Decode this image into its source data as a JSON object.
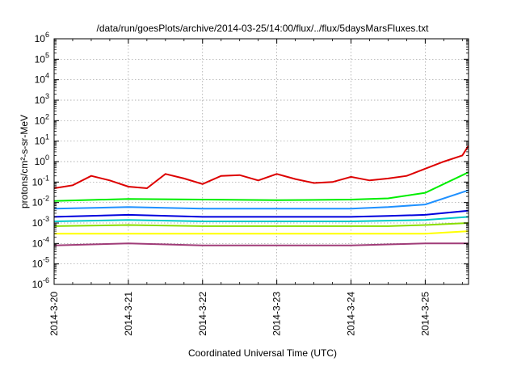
{
  "chart_data": {
    "type": "line",
    "title": "/data/run/goesPlots/archive/2014-03-25/14:00/flux/../flux/5daysMarsFluxes.txt",
    "xlabel": "Coordinated Universal Time (UTC)",
    "ylabel": "protons/cm²-s-sr-MeV",
    "yscale": "log",
    "ylim": [
      "1e-6",
      "1e6"
    ],
    "y_tick_labels": [
      {
        "base": "10",
        "exp": "-6"
      },
      {
        "base": "10",
        "exp": "-5"
      },
      {
        "base": "10",
        "exp": "-4"
      },
      {
        "base": "10",
        "exp": "-3"
      },
      {
        "base": "10",
        "exp": "-2"
      },
      {
        "base": "10",
        "exp": "-1"
      },
      {
        "base": "10",
        "exp": "0"
      },
      {
        "base": "10",
        "exp": "1"
      },
      {
        "base": "10",
        "exp": "2"
      },
      {
        "base": "10",
        "exp": "3"
      },
      {
        "base": "10",
        "exp": "4"
      },
      {
        "base": "10",
        "exp": "5"
      },
      {
        "base": "10",
        "exp": "6"
      }
    ],
    "xlim": [
      "2014-03-20",
      "2014-03-25T14:00"
    ],
    "x_tick_labels": [
      "2014-3-20",
      "2014-3-21",
      "2014-3-22",
      "2014-3-23",
      "2014-3-24",
      "2014-3-25"
    ],
    "grid": true,
    "series": [
      {
        "color": "#dd0000",
        "x": [
          "2014-03-20T00:00",
          "2014-03-20T06:00",
          "2014-03-20T12:00",
          "2014-03-20T18:00",
          "2014-03-21T00:00",
          "2014-03-21T06:00",
          "2014-03-21T12:00",
          "2014-03-21T18:00",
          "2014-03-22T00:00",
          "2014-03-22T06:00",
          "2014-03-22T12:00",
          "2014-03-22T18:00",
          "2014-03-23T00:00",
          "2014-03-23T06:00",
          "2014-03-23T12:00",
          "2014-03-23T18:00",
          "2014-03-24T00:00",
          "2014-03-24T06:00",
          "2014-03-24T12:00",
          "2014-03-24T18:00",
          "2014-03-25T00:00",
          "2014-03-25T06:00",
          "2014-03-25T12:00",
          "2014-03-25T14:00"
        ],
        "y": [
          "0.05",
          "0.07",
          "0.2",
          "0.12",
          "0.06",
          "0.05",
          "0.25",
          "0.15",
          "0.08",
          "0.2",
          "0.22",
          "0.12",
          "0.25",
          "0.14",
          "0.09",
          "0.1",
          "0.18",
          "0.12",
          "0.15",
          "0.2",
          "0.45",
          "1.0",
          "2.0",
          "6.0"
        ]
      },
      {
        "color": "#00ee00",
        "x": [
          "2014-03-20T00:00",
          "2014-03-21T00:00",
          "2014-03-22T00:00",
          "2014-03-23T00:00",
          "2014-03-24T00:00",
          "2014-03-24T12:00",
          "2014-03-25T00:00",
          "2014-03-25T14:00"
        ],
        "y": [
          "0.012",
          "0.015",
          "0.014",
          "0.013",
          "0.014",
          "0.016",
          "0.03",
          "0.3"
        ]
      },
      {
        "color": "#1e90ff",
        "x": [
          "2014-03-20T00:00",
          "2014-03-21T00:00",
          "2014-03-22T00:00",
          "2014-03-23T00:00",
          "2014-03-24T00:00",
          "2014-03-24T12:00",
          "2014-03-25T00:00",
          "2014-03-25T14:00"
        ],
        "y": [
          "0.005",
          "0.006",
          "0.005",
          "0.005",
          "0.005",
          "0.006",
          "0.008",
          "0.04"
        ]
      },
      {
        "color": "#0000dd",
        "x": [
          "2014-03-20T00:00",
          "2014-03-21T00:00",
          "2014-03-22T00:00",
          "2014-03-23T00:00",
          "2014-03-24T00:00",
          "2014-03-24T12:00",
          "2014-03-25T00:00",
          "2014-03-25T14:00"
        ],
        "y": [
          "0.002",
          "0.0025",
          "0.002",
          "0.002",
          "0.002",
          "0.0022",
          "0.0025",
          "0.004"
        ]
      },
      {
        "color": "#00c8c8",
        "x": [
          "2014-03-20T00:00",
          "2014-03-21T00:00",
          "2014-03-22T00:00",
          "2014-03-23T00:00",
          "2014-03-24T00:00",
          "2014-03-24T12:00",
          "2014-03-25T00:00",
          "2014-03-25T14:00"
        ],
        "y": [
          "0.0012",
          "0.0014",
          "0.0012",
          "0.0012",
          "0.0012",
          "0.0013",
          "0.0014",
          "0.002"
        ]
      },
      {
        "color": "#88dd00",
        "x": [
          "2014-03-20T00:00",
          "2014-03-21T00:00",
          "2014-03-22T00:00",
          "2014-03-23T00:00",
          "2014-03-24T00:00",
          "2014-03-24T12:00",
          "2014-03-25T00:00",
          "2014-03-25T14:00"
        ],
        "y": [
          "0.0007",
          "0.0008",
          "0.0007",
          "0.0007",
          "0.0007",
          "0.0007",
          "0.0008",
          "0.001"
        ]
      },
      {
        "color": "#ffff00",
        "x": [
          "2014-03-20T00:00",
          "2014-03-21T00:00",
          "2014-03-22T00:00",
          "2014-03-23T00:00",
          "2014-03-24T00:00",
          "2014-03-24T12:00",
          "2014-03-25T00:00",
          "2014-03-25T14:00"
        ],
        "y": [
          "0.0003",
          "0.0003",
          "0.0003",
          "0.0003",
          "0.0003",
          "0.0003",
          "0.0003",
          "0.0004"
        ]
      },
      {
        "color": "#a03c78",
        "x": [
          "2014-03-20T00:00",
          "2014-03-21T00:00",
          "2014-03-22T00:00",
          "2014-03-23T00:00",
          "2014-03-24T00:00",
          "2014-03-24T12:00",
          "2014-03-25T00:00",
          "2014-03-25T14:00"
        ],
        "y": [
          "0.00008",
          "0.0001",
          "0.00008",
          "0.00008",
          "0.00008",
          "0.00009",
          "0.0001",
          "0.0001"
        ]
      }
    ]
  }
}
